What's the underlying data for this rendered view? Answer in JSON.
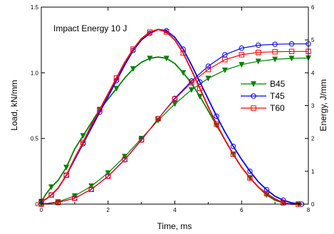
{
  "chart_data": {
    "type": "line",
    "annotation": "Impact Energy 10 J",
    "xlabel": "Time, ms",
    "ylabel_left": "Load, kN/mm",
    "ylabel_right": "Energy, J/mm",
    "xlim": [
      0,
      8
    ],
    "ylim_left": [
      0,
      1.5
    ],
    "ylim_right": [
      0,
      6
    ],
    "x_ticks": [
      0,
      2,
      4,
      6,
      8
    ],
    "y_ticks_left": [
      0,
      0.5,
      1.0,
      1.5
    ],
    "y_ticks_left_labels": [
      "0",
      "0.5",
      "1.0",
      "1.5"
    ],
    "y_ticks_right": [
      0,
      1,
      2,
      3,
      4,
      5,
      6
    ],
    "grid": false,
    "legend_position": "right-middle",
    "series": [
      {
        "name": "B45",
        "color": "#008000",
        "marker": "triangle-down",
        "load": {
          "x": [
            0,
            0.15,
            0.3,
            0.5,
            0.75,
            1.0,
            1.25,
            1.5,
            1.75,
            2.0,
            2.25,
            2.5,
            2.75,
            3.0,
            3.25,
            3.5,
            3.75,
            4.0,
            4.25,
            4.5,
            4.75,
            5.0,
            5.25,
            5.5,
            5.75,
            6.0,
            6.25,
            6.5,
            6.75,
            7.0,
            7.25,
            7.5,
            7.7
          ],
          "y": [
            0.02,
            0.08,
            0.13,
            0.18,
            0.28,
            0.42,
            0.52,
            0.62,
            0.72,
            0.8,
            0.88,
            0.96,
            1.03,
            1.08,
            1.11,
            1.12,
            1.11,
            1.07,
            1.0,
            0.92,
            0.82,
            0.71,
            0.6,
            0.49,
            0.38,
            0.28,
            0.2,
            0.13,
            0.07,
            0.03,
            0.01,
            0.0,
            0.0
          ]
        },
        "energy": {
          "x": [
            0,
            0.5,
            1.0,
            1.5,
            2.0,
            2.5,
            3.0,
            3.5,
            4.0,
            4.5,
            5.0,
            5.5,
            6.0,
            6.5,
            7.0,
            7.5,
            8.0
          ],
          "y": [
            0.0,
            0.07,
            0.25,
            0.55,
            0.95,
            1.45,
            2.0,
            2.55,
            3.05,
            3.48,
            3.83,
            4.08,
            4.25,
            4.35,
            4.41,
            4.44,
            4.45
          ]
        }
      },
      {
        "name": "T45",
        "color": "#0000ff",
        "marker": "circle",
        "load": {
          "x": [
            0,
            0.15,
            0.3,
            0.5,
            0.75,
            1.0,
            1.25,
            1.5,
            1.75,
            2.0,
            2.25,
            2.5,
            2.75,
            3.0,
            3.25,
            3.5,
            3.75,
            4.0,
            4.25,
            4.5,
            4.75,
            5.0,
            5.25,
            5.5,
            5.75,
            6.0,
            6.25,
            6.5,
            6.75,
            7.0,
            7.25,
            7.5,
            7.8
          ],
          "y": [
            0.02,
            0.04,
            0.07,
            0.12,
            0.22,
            0.34,
            0.46,
            0.58,
            0.7,
            0.82,
            0.94,
            1.06,
            1.17,
            1.25,
            1.3,
            1.33,
            1.32,
            1.27,
            1.18,
            1.06,
            0.93,
            0.8,
            0.67,
            0.55,
            0.44,
            0.34,
            0.25,
            0.17,
            0.11,
            0.06,
            0.03,
            0.01,
            0.0
          ]
        },
        "energy": {
          "x": [
            0,
            0.5,
            1.0,
            1.5,
            2.0,
            2.5,
            3.0,
            3.5,
            4.0,
            4.5,
            5.0,
            5.5,
            6.0,
            6.5,
            7.0,
            7.5,
            8.0
          ],
          "y": [
            0.0,
            0.05,
            0.18,
            0.45,
            0.85,
            1.35,
            1.95,
            2.6,
            3.22,
            3.75,
            4.2,
            4.55,
            4.75,
            4.84,
            4.87,
            4.88,
            4.88
          ]
        }
      },
      {
        "name": "T60",
        "color": "#ff0000",
        "marker": "square",
        "load": {
          "x": [
            0,
            0.15,
            0.3,
            0.5,
            0.75,
            1.0,
            1.25,
            1.5,
            1.75,
            2.0,
            2.25,
            2.5,
            2.75,
            3.0,
            3.25,
            3.5,
            3.75,
            4.0,
            4.25,
            4.5,
            4.75,
            5.0,
            5.25,
            5.5,
            5.75,
            6.0,
            6.25,
            6.5,
            6.75,
            7.0,
            7.25,
            7.5,
            7.7
          ],
          "y": [
            0.02,
            0.04,
            0.07,
            0.12,
            0.22,
            0.35,
            0.47,
            0.6,
            0.72,
            0.84,
            0.96,
            1.08,
            1.18,
            1.26,
            1.31,
            1.33,
            1.31,
            1.25,
            1.15,
            1.02,
            0.88,
            0.74,
            0.61,
            0.49,
            0.38,
            0.28,
            0.2,
            0.13,
            0.08,
            0.04,
            0.01,
            0.0,
            0.0
          ]
        },
        "energy": {
          "x": [
            0,
            0.5,
            1.0,
            1.5,
            2.0,
            2.5,
            3.0,
            3.5,
            4.0,
            4.5,
            5.0,
            5.5,
            6.0,
            6.5,
            7.0,
            7.5,
            8.0
          ],
          "y": [
            0.0,
            0.05,
            0.18,
            0.45,
            0.85,
            1.36,
            1.96,
            2.6,
            3.2,
            3.7,
            4.1,
            4.4,
            4.55,
            4.62,
            4.64,
            4.65,
            4.65
          ]
        }
      }
    ]
  }
}
